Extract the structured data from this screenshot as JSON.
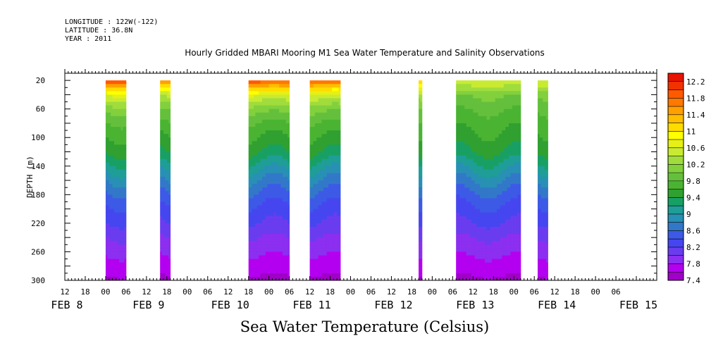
{
  "header": {
    "longitude": "LONGITUDE : 122W(-122)",
    "latitude": "LATITUDE : 36.8N",
    "year": "YEAR : 2011"
  },
  "chart_data": {
    "type": "heatmap",
    "title": "Hourly Gridded MBARI Mooring M1 Sea Water Temperature and Salinity Observations",
    "variable_label": "Sea Water Temperature (Celsius)",
    "ylabel": "DEPTH (m)",
    "ylim": [
      300,
      10
    ],
    "y_inverted": true,
    "y_ticks": [
      20,
      60,
      100,
      140,
      180,
      220,
      260,
      300
    ],
    "xlim_hours": [
      -12,
      162
    ],
    "x_hour_ticks": [
      "12",
      "18",
      "00",
      "06",
      "12",
      "18",
      "00",
      "06",
      "12",
      "18",
      "00",
      "06",
      "12",
      "18",
      "00",
      "06",
      "12",
      "18",
      "00",
      "06",
      "12",
      "18",
      "00",
      "06",
      "12",
      "18",
      "00",
      "06"
    ],
    "x_day_labels": [
      "FEB  8",
      "FEB  9",
      "FEB 10",
      "FEB 11",
      "FEB 12",
      "FEB 13",
      "FEB 14",
      "FEB 15"
    ],
    "colorbar": {
      "min": 7.4,
      "max": 12.4,
      "step": 0.2,
      "tick_labels": [
        "12.2",
        "11.8",
        "11.4",
        "11",
        "10.6",
        "10.2",
        "9.8",
        "9.4",
        "9",
        "8.6",
        "8.2",
        "7.8",
        "7.4"
      ],
      "colors": [
        "#a000c8",
        "#b400f0",
        "#8c2ff0",
        "#6a3cf0",
        "#4646f0",
        "#3c5ae6",
        "#3278c8",
        "#2890b4",
        "#1e9e96",
        "#18a064",
        "#30a030",
        "#4ab432",
        "#64c03c",
        "#82d03c",
        "#a0dc3c",
        "#c8eb32",
        "#e6f014",
        "#ffff00",
        "#ffdc00",
        "#ffbe00",
        "#ffa000",
        "#ff7800",
        "#ff5a00",
        "#f03200",
        "#e61400"
      ]
    },
    "segments": [
      {
        "start_hour": 0,
        "end_hour": 6,
        "surface_temp": 12.0
      },
      {
        "start_hour": 16,
        "end_hour": 19,
        "surface_temp": 11.6
      },
      {
        "start_hour": 42,
        "end_hour": 54,
        "surface_temp": 12.0
      },
      {
        "start_hour": 60,
        "end_hour": 69,
        "surface_temp": 11.9
      },
      {
        "start_hour": 92,
        "end_hour": 93,
        "surface_temp": 11.2
      },
      {
        "start_hour": 103,
        "end_hour": 122,
        "surface_temp": 10.6
      },
      {
        "start_hour": 127,
        "end_hour": 130,
        "surface_temp": 10.6
      }
    ],
    "profile_depths": [
      20,
      40,
      60,
      80,
      100,
      120,
      140,
      160,
      180,
      200,
      220,
      240,
      260,
      280,
      300
    ],
    "profile_base_temps": [
      11.0,
      10.2,
      9.9,
      9.7,
      9.55,
      9.4,
      9.1,
      8.8,
      8.55,
      8.35,
      8.2,
      8.0,
      7.85,
      7.7,
      7.55
    ],
    "grid": false,
    "legend": "right"
  }
}
